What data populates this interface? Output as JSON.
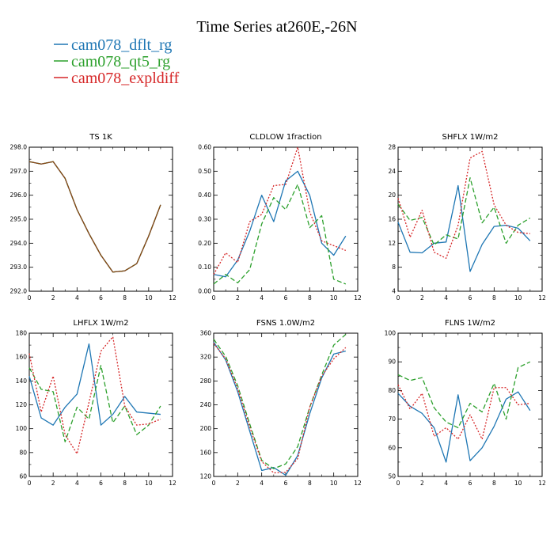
{
  "figure": {
    "title": "Time Series at260E,-26N",
    "legend": [
      {
        "label": "cam078_dflt_rg",
        "color": "#1f77b4",
        "dash": "solid"
      },
      {
        "label": "cam078_qt5_rg",
        "color": "#2ca02c",
        "dash": "dashed"
      },
      {
        "label": "cam078_expldiff",
        "color": "#d62728",
        "dash": "dotted"
      }
    ]
  },
  "chart_data": [
    {
      "type": "line",
      "title": "TS   1K",
      "xlim": [
        0,
        12
      ],
      "xticks": [
        0,
        2,
        4,
        6,
        8,
        10,
        12
      ],
      "xtick_labels": [
        "0",
        "2",
        "4",
        "6",
        "8",
        "10",
        "12"
      ],
      "ylim": [
        292,
        298
      ],
      "yticks": [
        292,
        293,
        294,
        295,
        296,
        297,
        298
      ],
      "ytick_labels": [
        "292.0",
        "293.0",
        "294.0",
        "295.0",
        "296.0",
        "297.0",
        "298.0"
      ],
      "x": [
        0,
        1,
        2,
        3,
        4,
        5,
        6,
        7,
        8,
        9,
        10,
        11
      ],
      "series": [
        {
          "values": [
            297.4,
            297.3,
            297.4,
            296.7,
            295.4,
            294.4,
            293.5,
            292.8,
            292.85,
            293.15,
            294.3,
            295.6
          ],
          "color": "#1f77b4",
          "dash": "solid"
        },
        {
          "values": [
            297.4,
            297.3,
            297.4,
            296.7,
            295.4,
            294.4,
            293.5,
            292.8,
            292.85,
            293.15,
            294.3,
            295.6
          ],
          "color": "#2ca02c",
          "dash": "dashed"
        },
        {
          "values": [
            297.4,
            297.3,
            297.4,
            296.7,
            295.4,
            294.4,
            293.5,
            292.8,
            292.85,
            293.15,
            294.3,
            295.6
          ],
          "color": "#8b4513",
          "dash": "solid"
        }
      ]
    },
    {
      "type": "line",
      "title": "CLDLOW   1fraction",
      "xlim": [
        0,
        12
      ],
      "xticks": [
        0,
        2,
        4,
        6,
        8,
        10,
        12
      ],
      "xtick_labels": [
        "0",
        "2",
        "4",
        "6",
        "8",
        "10",
        "12"
      ],
      "ylim": [
        0,
        0.6
      ],
      "yticks": [
        0,
        0.1,
        0.2,
        0.3,
        0.4,
        0.5,
        0.6
      ],
      "ytick_labels": [
        "0.00",
        "0.10",
        "0.20",
        "0.30",
        "0.40",
        "0.50",
        "0.60"
      ],
      "x": [
        0,
        1,
        2,
        3,
        4,
        5,
        6,
        7,
        8,
        9,
        10,
        11
      ],
      "series": [
        {
          "values": [
            0.07,
            0.06,
            0.13,
            0.25,
            0.4,
            0.29,
            0.46,
            0.5,
            0.4,
            0.2,
            0.15,
            0.23
          ],
          "color": "#1f77b4",
          "dash": "solid"
        },
        {
          "values": [
            0.03,
            0.07,
            0.035,
            0.09,
            0.28,
            0.39,
            0.34,
            0.445,
            0.265,
            0.315,
            0.05,
            0.03
          ],
          "color": "#2ca02c",
          "dash": "dashed"
        },
        {
          "values": [
            0.07,
            0.16,
            0.12,
            0.29,
            0.32,
            0.44,
            0.445,
            0.6,
            0.33,
            0.21,
            0.19,
            0.17
          ],
          "color": "#d62728",
          "dash": "dotted"
        }
      ]
    },
    {
      "type": "line",
      "title": "SHFLX   1W/m2",
      "xlim": [
        0,
        12
      ],
      "xticks": [
        0,
        2,
        4,
        6,
        8,
        10,
        12
      ],
      "xtick_labels": [
        "0",
        "2",
        "4",
        "6",
        "8",
        "10",
        "12"
      ],
      "ylim": [
        4,
        28
      ],
      "yticks": [
        4,
        8,
        12,
        16,
        20,
        24,
        28
      ],
      "ytick_labels": [
        "4",
        "8",
        "12",
        "16",
        "20",
        "24",
        "28"
      ],
      "x": [
        0,
        1,
        2,
        3,
        4,
        5,
        6,
        7,
        8,
        9,
        10,
        11
      ],
      "series": [
        {
          "values": [
            15.5,
            10.5,
            10.4,
            12.0,
            12.2,
            21.6,
            7.3,
            11.8,
            14.8,
            15.0,
            14.5,
            12.4
          ],
          "color": "#1f77b4",
          "dash": "solid"
        },
        {
          "values": [
            18.5,
            15.8,
            16.3,
            11.7,
            13.4,
            12.7,
            22.9,
            15.4,
            18.0,
            12.0,
            15.0,
            16.2
          ],
          "color": "#2ca02c",
          "dash": "dashed"
        },
        {
          "values": [
            19.5,
            13.0,
            17.5,
            10.5,
            9.5,
            15.0,
            26.2,
            27.3,
            18.4,
            15.0,
            13.8,
            13.6
          ],
          "color": "#d62728",
          "dash": "dotted"
        }
      ]
    },
    {
      "type": "line",
      "title": "LHFLX   1W/m2",
      "xlim": [
        0,
        12
      ],
      "xticks": [
        0,
        2,
        4,
        6,
        8,
        10,
        12
      ],
      "xtick_labels": [
        "0",
        "2",
        "4",
        "6",
        "8",
        "10",
        "12"
      ],
      "ylim": [
        60,
        180
      ],
      "yticks": [
        60,
        80,
        100,
        120,
        140,
        160,
        180
      ],
      "ytick_labels": [
        "60",
        "80",
        "100",
        "120",
        "140",
        "160",
        "180"
      ],
      "x": [
        0,
        1,
        2,
        3,
        4,
        5,
        6,
        7,
        8,
        9,
        10,
        11
      ],
      "series": [
        {
          "values": [
            144,
            109,
            103,
            118,
            129,
            171,
            103,
            112,
            127,
            114,
            113,
            112
          ],
          "color": "#1f77b4",
          "dash": "solid"
        },
        {
          "values": [
            151,
            133,
            131,
            89,
            118,
            108,
            153,
            105,
            119,
            95,
            103,
            119
          ],
          "color": "#2ca02c",
          "dash": "dashed"
        },
        {
          "values": [
            163,
            114,
            144,
            95,
            79,
            122,
            165,
            177,
            119,
            103,
            104,
            108
          ],
          "color": "#d62728",
          "dash": "dotted"
        }
      ]
    },
    {
      "type": "line",
      "title": "FSNS   1.0W/m2",
      "xlim": [
        0,
        12
      ],
      "xticks": [
        0,
        2,
        4,
        6,
        8,
        10,
        12
      ],
      "xtick_labels": [
        "0",
        "2",
        "4",
        "6",
        "8",
        "10",
        "12"
      ],
      "ylim": [
        120,
        360
      ],
      "yticks": [
        120,
        160,
        200,
        240,
        280,
        320,
        360
      ],
      "ytick_labels": [
        "120",
        "160",
        "200",
        "240",
        "280",
        "320",
        "360"
      ],
      "x": [
        0,
        1,
        2,
        3,
        4,
        5,
        6,
        7,
        8,
        9,
        10,
        11
      ],
      "series": [
        {
          "values": [
            345,
            315,
            262,
            196,
            130,
            135,
            122,
            155,
            225,
            285,
            325,
            330
          ],
          "color": "#1f77b4",
          "dash": "solid"
        },
        {
          "values": [
            350,
            321,
            272,
            208,
            147,
            133,
            141,
            170,
            236,
            290,
            340,
            358
          ],
          "color": "#2ca02c",
          "dash": "dashed"
        },
        {
          "values": [
            343,
            317,
            267,
            203,
            145,
            126,
            127,
            150,
            236,
            288,
            317,
            336
          ],
          "color": "#d62728",
          "dash": "dotted"
        }
      ]
    },
    {
      "type": "line",
      "title": "FLNS   1W/m2",
      "xlim": [
        0,
        12
      ],
      "xticks": [
        0,
        2,
        4,
        6,
        8,
        10,
        12
      ],
      "xtick_labels": [
        "0",
        "2",
        "4",
        "6",
        "8",
        "10",
        "12"
      ],
      "ylim": [
        50,
        100
      ],
      "yticks": [
        50,
        60,
        70,
        80,
        90,
        100
      ],
      "ytick_labels": [
        "50",
        "60",
        "70",
        "80",
        "90",
        "100"
      ],
      "x": [
        0,
        1,
        2,
        3,
        4,
        5,
        6,
        7,
        8,
        9,
        10,
        11
      ],
      "series": [
        {
          "values": [
            79,
            74.5,
            72,
            67,
            55,
            78.5,
            55.5,
            60,
            67.5,
            77,
            79.5,
            73
          ],
          "color": "#1f77b4",
          "dash": "solid"
        },
        {
          "values": [
            85.5,
            83.5,
            84.5,
            74,
            69,
            67,
            75.5,
            72.5,
            82.5,
            70,
            88,
            90
          ],
          "color": "#2ca02c",
          "dash": "dashed"
        },
        {
          "values": [
            82,
            73.5,
            79,
            64,
            67,
            63,
            71.5,
            63,
            81,
            81,
            75,
            75.5
          ],
          "color": "#d62728",
          "dash": "dotted"
        }
      ]
    }
  ]
}
